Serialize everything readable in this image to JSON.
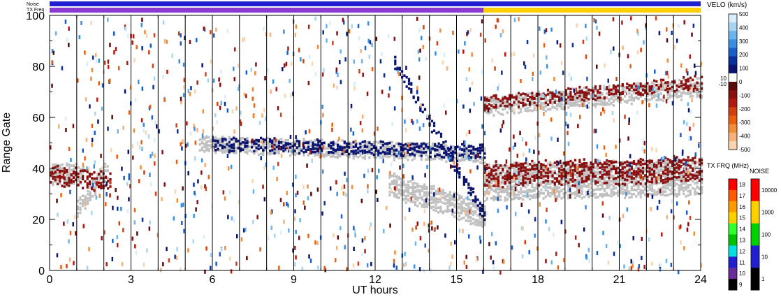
{
  "chart_data": {
    "type": "heatmap",
    "xlabel": "UT hours",
    "ylabel": "Range Gate",
    "xlim": [
      0,
      24
    ],
    "ylim": [
      0,
      100
    ],
    "x_ticks": [
      "0",
      "3",
      "6",
      "9",
      "12",
      "15",
      "18",
      "21",
      "24"
    ],
    "y_ticks": [
      "0",
      "20",
      "40",
      "60",
      "80",
      "100"
    ],
    "scan_boundaries_ut": [
      1.0,
      2.0,
      3.0,
      4.0,
      5.0,
      6.0,
      7.0,
      8.0,
      9.0,
      10.0,
      11.0,
      12.0,
      13.0,
      14.0,
      15.0,
      16.0,
      17.0,
      18.0,
      19.0,
      20.0,
      21.0,
      22.0,
      23.0
    ],
    "top_strips": {
      "noise_label": "Noise",
      "txfreq_label": "TX Freq",
      "noise_color": "#2020d0",
      "txfreq_color_before": "#8a3ad0",
      "txfreq_color_after": "#ffd000",
      "txfreq_change_ut": 16.0
    },
    "velocity_colorbar": {
      "title": "VELO (km/s)",
      "ticks": [
        "500",
        "400",
        "300",
        "200",
        "100",
        "0",
        "-100",
        "-200",
        "-300",
        "-400",
        "-500"
      ],
      "inner_labels": [
        "10",
        "-10"
      ],
      "colors": [
        "#d8ecfa",
        "#a8d4f4",
        "#6cb4ec",
        "#3a8ee0",
        "#1a5ec8",
        "#0a2e9a",
        "#0a1470",
        "#ffffff",
        "#5a0a0a",
        "#8a1010",
        "#b01a10",
        "#d04010",
        "#e66010",
        "#f08c3a",
        "#f6b07a",
        "#fad4b0"
      ]
    },
    "txfreq_colorbar": {
      "title": "TX FRQ (MHz)",
      "ticks": [
        "18",
        "17",
        "16",
        "15",
        "14",
        "13",
        "12",
        "11",
        "10",
        "9"
      ],
      "colors": [
        "#ff0000",
        "#ff5a00",
        "#ff9a00",
        "#ffd000",
        "#30ff30",
        "#00c000",
        "#00e0e0",
        "#2020d0",
        "#6a2a9a",
        "#000000"
      ]
    },
    "noise_colorbar": {
      "title": "NOISE",
      "ticks": [
        "10000",
        "1000",
        "100",
        "10",
        "1"
      ],
      "colors": [
        "#ff0000",
        "#ffd000",
        "#00d000",
        "#2020d0",
        "#000000"
      ]
    },
    "series": [
      {
        "color": "#c0c0c0",
        "bands": [
          {
            "x": [
              0.0,
              1.2
            ],
            "center": [
              38,
              38
            ],
            "width": 7
          },
          {
            "x": [
              1.0,
              2.1
            ],
            "center": [
              25,
              40
            ],
            "width": 6
          },
          {
            "x": [
              5.5,
              16.0
            ],
            "center": [
              50,
              46
            ],
            "width": 5
          },
          {
            "x": [
              12.5,
              16.0
            ],
            "center": [
              34,
              22
            ],
            "width": 8
          },
          {
            "x": [
              16.0,
              24.0
            ],
            "center": [
              35,
              37
            ],
            "width": 12
          },
          {
            "x": [
              16.0,
              24.0
            ],
            "center": [
              65,
              72
            ],
            "width": 6
          }
        ]
      },
      {
        "color": "#0a1470",
        "bands": [
          {
            "x": [
              12.7,
              16.0
            ],
            "center": [
              82,
              22
            ],
            "width": 4
          },
          {
            "x": [
              6.0,
              16.0
            ],
            "center": [
              50,
              47
            ],
            "width": 4
          }
        ]
      },
      {
        "color": "#8a1010",
        "bands": [
          {
            "x": [
              0.0,
              2.2
            ],
            "center": [
              38,
              35
            ],
            "width": 6
          },
          {
            "x": [
              16.0,
              24.0
            ],
            "center": [
              38,
              40
            ],
            "width": 8
          },
          {
            "x": [
              16.0,
              24.0
            ],
            "center": [
              66,
              74
            ],
            "width": 4
          }
        ]
      }
    ]
  }
}
